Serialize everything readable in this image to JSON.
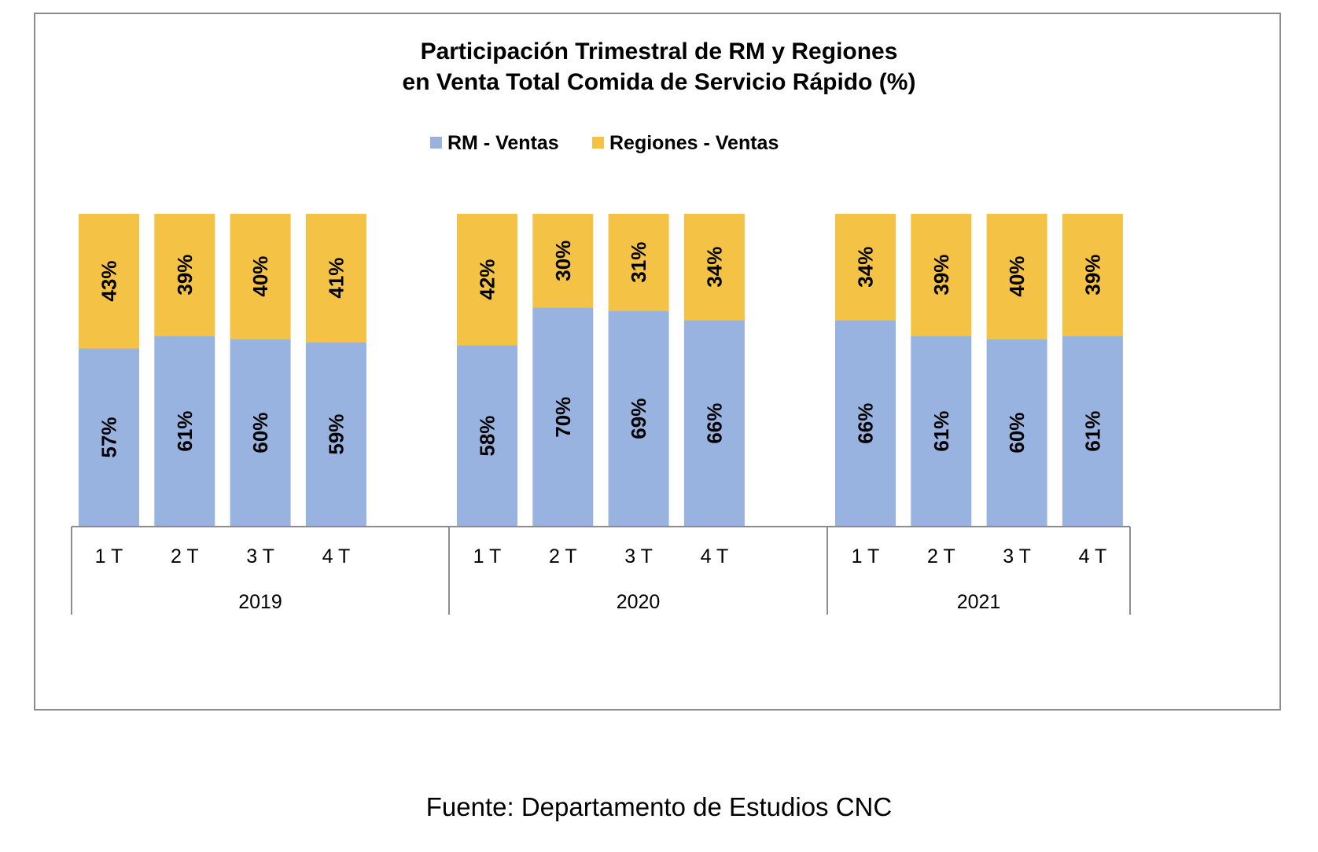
{
  "chart_data": {
    "type": "bar",
    "stacked": true,
    "percent_stacked": true,
    "title": [
      "Participación Trimestral de RM y Regiones",
      "en Venta Total Comida de Servicio Rápido (%)"
    ],
    "legend_position": "top",
    "groups": [
      {
        "label": "2019",
        "categories": [
          "1 T",
          "2 T",
          "3 T",
          "4 T"
        ]
      },
      {
        "label": "2020",
        "categories": [
          "1 T",
          "2 T",
          "3 T",
          "4 T"
        ]
      },
      {
        "label": "2021",
        "categories": [
          "1 T",
          "2 T",
          "3 T",
          "4 T"
        ]
      }
    ],
    "series": [
      {
        "name": "RM - Ventas",
        "color": "#98B3DF",
        "values": [
          57,
          61,
          60,
          59,
          58,
          70,
          69,
          66,
          66,
          61,
          60,
          61
        ],
        "labels": [
          "57%",
          "61%",
          "60%",
          "59%",
          "58%",
          "70%",
          "69%",
          "66%",
          "66%",
          "61%",
          "60%",
          "61%"
        ]
      },
      {
        "name": "Regiones - Ventas",
        "color": "#F4C244",
        "values": [
          43,
          39,
          40,
          41,
          42,
          30,
          31,
          34,
          34,
          39,
          40,
          39
        ],
        "labels": [
          "43%",
          "39%",
          "40%",
          "41%",
          "42%",
          "30%",
          "31%",
          "34%",
          "34%",
          "39%",
          "40%",
          "39%"
        ]
      }
    ],
    "ylim": [
      0,
      100
    ],
    "grid": false
  },
  "source": "Fuente: Departamento de Estudios CNC"
}
